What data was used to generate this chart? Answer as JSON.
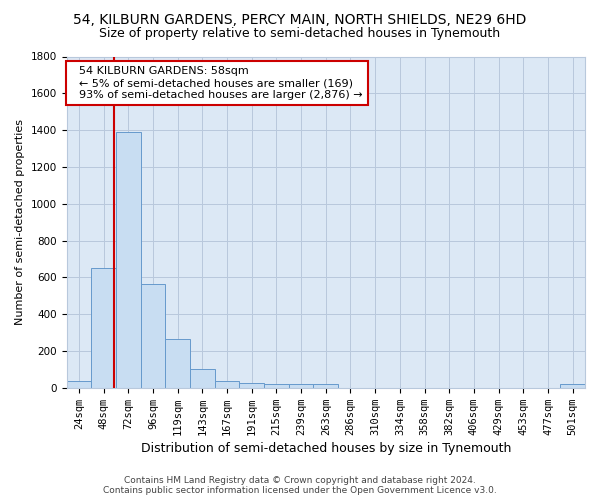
{
  "title1": "54, KILBURN GARDENS, PERCY MAIN, NORTH SHIELDS, NE29 6HD",
  "title2": "Size of property relative to semi-detached houses in Tynemouth",
  "xlabel": "Distribution of semi-detached houses by size in Tynemouth",
  "ylabel": "Number of semi-detached properties",
  "footer": "Contains HM Land Registry data © Crown copyright and database right 2024.\nContains public sector information licensed under the Open Government Licence v3.0.",
  "annotation_title": "54 KILBURN GARDENS: 58sqm",
  "annotation_line1": "← 5% of semi-detached houses are smaller (169)",
  "annotation_line2": "93% of semi-detached houses are larger (2,876) →",
  "categories": [
    "24sqm",
    "48sqm",
    "72sqm",
    "96sqm",
    "119sqm",
    "143sqm",
    "167sqm",
    "191sqm",
    "215sqm",
    "239sqm",
    "263sqm",
    "286sqm",
    "310sqm",
    "334sqm",
    "358sqm",
    "382sqm",
    "406sqm",
    "429sqm",
    "453sqm",
    "477sqm",
    "501sqm"
  ],
  "values": [
    35,
    650,
    1390,
    565,
    265,
    100,
    35,
    28,
    20,
    20,
    20,
    0,
    0,
    0,
    0,
    0,
    0,
    0,
    0,
    0,
    20
  ],
  "bar_color": "#c8ddf2",
  "bar_edge_color": "#6699cc",
  "vline_color": "#cc0000",
  "vline_x": 1.42,
  "annotation_box_color": "#ffffff",
  "annotation_box_edge": "#cc0000",
  "background_color": "#ffffff",
  "plot_bg_color": "#dce8f5",
  "grid_color": "#b8c8dc",
  "ylim": [
    0,
    1800
  ],
  "yticks": [
    0,
    200,
    400,
    600,
    800,
    1000,
    1200,
    1400,
    1600,
    1800
  ],
  "title1_fontsize": 10,
  "title2_fontsize": 9,
  "ylabel_fontsize": 8,
  "xlabel_fontsize": 9,
  "tick_fontsize": 7.5,
  "footer_fontsize": 6.5
}
